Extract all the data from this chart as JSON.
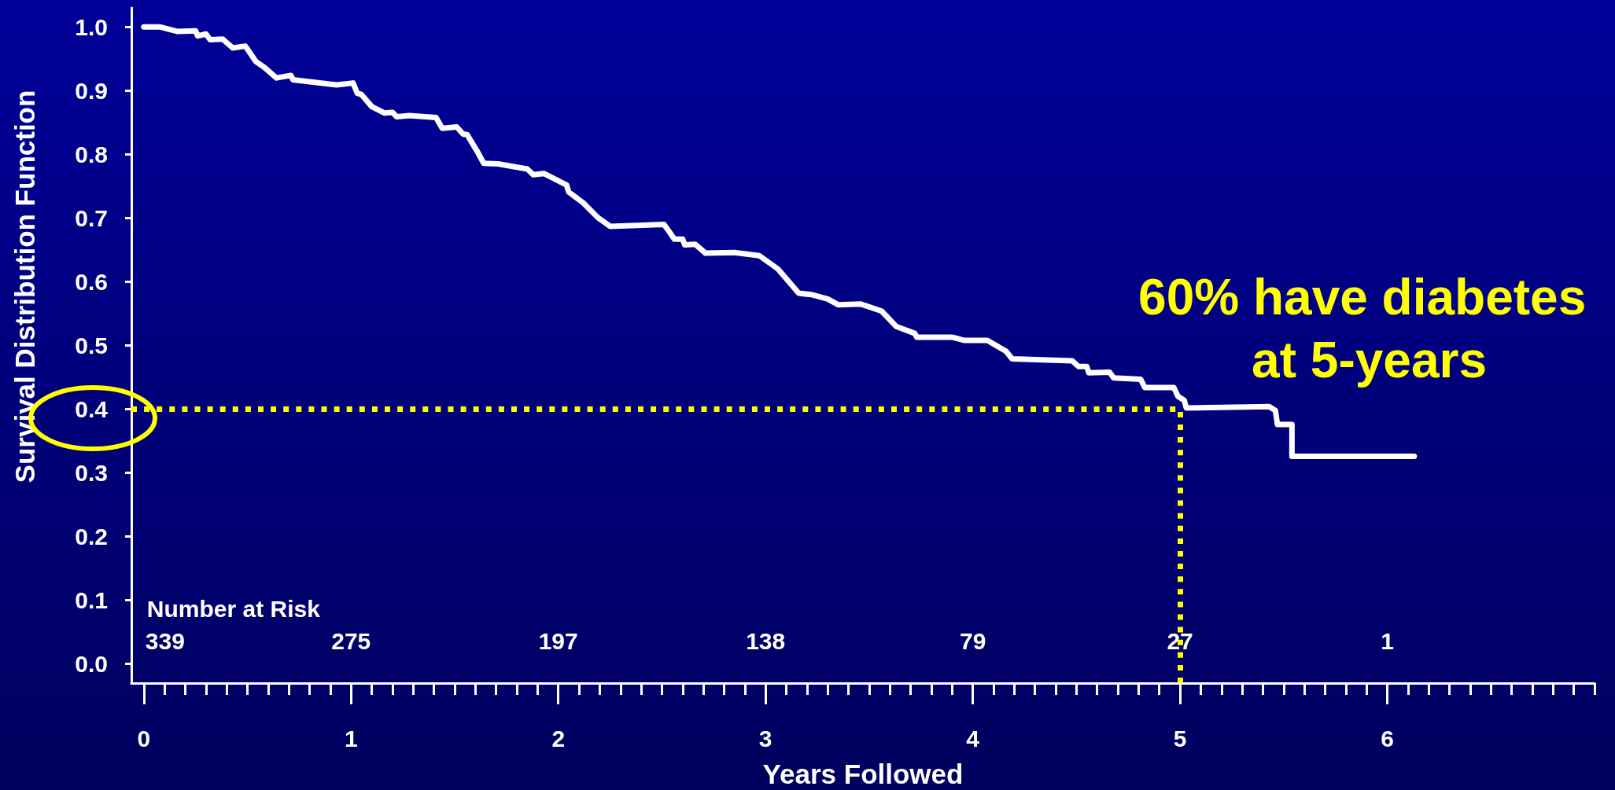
{
  "chart_data": {
    "type": "line",
    "xlabel": "Years Followed",
    "ylabel": "Survival Distribution Function",
    "x": [
      0,
      0.08,
      0.16,
      0.25,
      0.26,
      0.3,
      0.32,
      0.38,
      0.43,
      0.49,
      0.54,
      0.58,
      0.64,
      0.71,
      0.72,
      0.93,
      1.01,
      1.03,
      1.05,
      1.1,
      1.16,
      1.2,
      1.22,
      1.28,
      1.41,
      1.44,
      1.51,
      1.54,
      1.56,
      1.61,
      1.62,
      1.64,
      1.71,
      1.85,
      1.88,
      1.93,
      2.04,
      2.05,
      2.12,
      2.19,
      2.25,
      2.51,
      2.53,
      2.56,
      2.6,
      2.61,
      2.66,
      2.71,
      2.85,
      2.97,
      3.06,
      3.16,
      3.22,
      3.3,
      3.35,
      3.46,
      3.56,
      3.63,
      3.72,
      3.73,
      3.9,
      3.96,
      4.07,
      4.16,
      4.19,
      4.48,
      4.51,
      4.55,
      4.56,
      4.66,
      4.68,
      4.81,
      4.83,
      4.97,
      4.99,
      5.02,
      5.03,
      5.43,
      5.46,
      5.47,
      5.54,
      5.54,
      6.13
    ],
    "values": [
      1.0,
      1.0,
      0.993,
      0.994,
      0.986,
      0.989,
      0.98,
      0.981,
      0.967,
      0.97,
      0.946,
      0.937,
      0.92,
      0.924,
      0.917,
      0.909,
      0.912,
      0.896,
      0.894,
      0.875,
      0.865,
      0.866,
      0.859,
      0.861,
      0.858,
      0.841,
      0.843,
      0.832,
      0.831,
      0.804,
      0.798,
      0.786,
      0.785,
      0.777,
      0.768,
      0.77,
      0.752,
      0.741,
      0.724,
      0.701,
      0.687,
      0.69,
      0.681,
      0.667,
      0.667,
      0.658,
      0.659,
      0.645,
      0.646,
      0.641,
      0.62,
      0.582,
      0.58,
      0.573,
      0.564,
      0.565,
      0.554,
      0.53,
      0.519,
      0.513,
      0.513,
      0.508,
      0.508,
      0.491,
      0.479,
      0.476,
      0.467,
      0.467,
      0.457,
      0.458,
      0.449,
      0.447,
      0.434,
      0.434,
      0.42,
      0.414,
      0.402,
      0.404,
      0.398,
      0.376,
      0.376,
      0.326,
      0.326
    ],
    "color": "#ffffff",
    "marker": "none",
    "line_style": "solid",
    "xlim": [
      -0.06,
      7
    ],
    "ylim": [
      -0.03,
      1.03
    ],
    "xticks": [
      0,
      {
        "value": 0.1,
        "label": null
      },
      {
        "value": 0.2,
        "label": null
      },
      {
        "value": 0.3,
        "label": null
      },
      {
        "value": 0.4,
        "label": null
      },
      {
        "value": 0.5,
        "label": null
      },
      {
        "value": 0.6,
        "label": null
      },
      {
        "value": 0.7,
        "label": null
      },
      {
        "value": 0.8,
        "label": null
      },
      {
        "value": 0.9,
        "label": null
      },
      1,
      {
        "value": 1.1,
        "label": null
      },
      {
        "value": 1.2,
        "label": null
      },
      {
        "value": 1.3,
        "label": null
      },
      {
        "value": 1.4,
        "label": null
      },
      {
        "value": 1.5,
        "label": null
      },
      {
        "value": 1.6,
        "label": null
      },
      {
        "value": 1.7,
        "label": null
      },
      {
        "value": 1.8,
        "label": null
      },
      {
        "value": 1.9,
        "label": null
      },
      2,
      {
        "value": 2.1,
        "label": null
      },
      {
        "value": 2.2,
        "label": null
      },
      {
        "value": 2.3,
        "label": null
      },
      {
        "value": 2.4,
        "label": null
      },
      {
        "value": 2.5,
        "label": null
      },
      {
        "value": 2.6,
        "label": null
      },
      {
        "value": 2.7,
        "label": null
      },
      {
        "value": 2.8,
        "label": null
      },
      {
        "value": 2.9,
        "label": null
      },
      3,
      {
        "value": 3.1,
        "label": null
      },
      {
        "value": 3.2,
        "label": null
      },
      {
        "value": 3.3,
        "label": null
      },
      {
        "value": 3.4,
        "label": null
      },
      {
        "value": 3.5,
        "label": null
      },
      {
        "value": 3.6,
        "label": null
      },
      {
        "value": 3.7,
        "label": null
      },
      {
        "value": 3.8,
        "label": null
      },
      {
        "value": 3.9,
        "label": null
      },
      4,
      {
        "value": 4.1,
        "label": null
      },
      {
        "value": 4.2,
        "label": null
      },
      {
        "value": 4.3,
        "label": null
      },
      {
        "value": 4.4,
        "label": null
      },
      {
        "value": 4.5,
        "label": null
      },
      {
        "value": 4.6,
        "label": null
      },
      {
        "value": 4.7,
        "label": null
      },
      {
        "value": 4.8,
        "label": null
      },
      {
        "value": 4.9,
        "label": null
      },
      5,
      {
        "value": 5.1,
        "label": null
      },
      {
        "value": 5.2,
        "label": null
      },
      {
        "value": 5.3,
        "label": null
      },
      {
        "value": 5.4,
        "label": null
      },
      {
        "value": 5.5,
        "label": null
      },
      {
        "value": 5.6,
        "label": null
      },
      {
        "value": 5.7,
        "label": null
      },
      {
        "value": 5.8,
        "label": null
      },
      {
        "value": 5.9,
        "label": null
      },
      6,
      {
        "value": 6.1,
        "label": null
      },
      {
        "value": 6.2,
        "label": null
      },
      {
        "value": 6.3,
        "label": null
      },
      {
        "value": 6.4,
        "label": null
      },
      {
        "value": 6.5,
        "label": null
      },
      {
        "value": 6.6,
        "label": null
      },
      {
        "value": 6.7,
        "label": null
      },
      {
        "value": 6.8,
        "label": null
      },
      {
        "value": 6.9,
        "label": null
      },
      {
        "value": 7,
        "label": null
      }
    ],
    "yticks": [
      {
        "value": 0,
        "label": "0.0"
      },
      0.1,
      0.2,
      0.3,
      0.4,
      0.5,
      0.6,
      0.7,
      0.8,
      0.9,
      {
        "value": 1,
        "label": "1.0"
      }
    ],
    "ref_lines": [
      {
        "axis": "y",
        "value": 0.4,
        "color": "#ffff00",
        "line_style": "dotted"
      },
      {
        "axis": "x",
        "value": 5,
        "color": "#ffff00",
        "line_style": "dotted"
      }
    ],
    "annotations": [
      "Number at Risk",
      "339",
      "275",
      "197",
      "138",
      "79",
      "27",
      "1",
      "60% have diabetes at 5-years"
    ]
  }
}
